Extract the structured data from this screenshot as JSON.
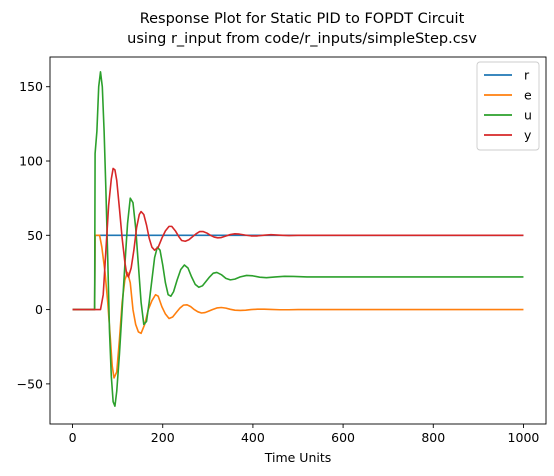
{
  "chart_data": {
    "type": "line",
    "title_line1": "Response Plot for Static PID to FOPDT Circuit",
    "title_line2": "using r_input from code/r_inputs/simpleStep.csv",
    "xlabel": "Time Units",
    "ylabel": "",
    "xlim": [
      -50,
      1050
    ],
    "ylim": [
      -77,
      170
    ],
    "grid": false,
    "legend_position": "top-right",
    "x_ticks": [
      0,
      200,
      400,
      600,
      800,
      1000
    ],
    "y_ticks": [
      -50,
      0,
      50,
      100,
      150
    ],
    "x_tick_labels": [
      "0",
      "200",
      "400",
      "600",
      "800",
      "1000"
    ],
    "y_tick_labels": [
      "−50",
      "0",
      "50",
      "100",
      "150"
    ],
    "series": [
      {
        "name": "r",
        "color": "#1f77b4",
        "points": [
          [
            0,
            0
          ],
          [
            49,
            0
          ],
          [
            50,
            50
          ],
          [
            100,
            50
          ],
          [
            200,
            50
          ],
          [
            400,
            50
          ],
          [
            600,
            50
          ],
          [
            800,
            50
          ],
          [
            1000,
            50
          ]
        ]
      },
      {
        "name": "e",
        "color": "#ff7f0e",
        "points": [
          [
            0,
            0
          ],
          [
            49,
            0
          ],
          [
            50,
            50
          ],
          [
            60,
            50
          ],
          [
            65,
            42
          ],
          [
            72,
            25
          ],
          [
            78,
            5
          ],
          [
            84,
            -20
          ],
          [
            88,
            -38
          ],
          [
            92,
            -46
          ],
          [
            98,
            -42
          ],
          [
            104,
            -20
          ],
          [
            110,
            5
          ],
          [
            116,
            20
          ],
          [
            122,
            25
          ],
          [
            128,
            18
          ],
          [
            134,
            0
          ],
          [
            140,
            -10
          ],
          [
            146,
            -15
          ],
          [
            152,
            -16
          ],
          [
            160,
            -10
          ],
          [
            168,
            0
          ],
          [
            176,
            6
          ],
          [
            184,
            10
          ],
          [
            190,
            9
          ],
          [
            198,
            2
          ],
          [
            206,
            -3
          ],
          [
            214,
            -6
          ],
          [
            222,
            -5
          ],
          [
            230,
            -2
          ],
          [
            238,
            1
          ],
          [
            246,
            3
          ],
          [
            254,
            3.2
          ],
          [
            262,
            2
          ],
          [
            270,
            0
          ],
          [
            278,
            -1.5
          ],
          [
            286,
            -2.3
          ],
          [
            294,
            -2
          ],
          [
            302,
            -1
          ],
          [
            310,
            0
          ],
          [
            320,
            1.1
          ],
          [
            330,
            1.4
          ],
          [
            340,
            1
          ],
          [
            350,
            0.2
          ],
          [
            360,
            -0.4
          ],
          [
            372,
            -0.6
          ],
          [
            384,
            -0.4
          ],
          [
            396,
            0
          ],
          [
            410,
            0.3
          ],
          [
            425,
            0.3
          ],
          [
            440,
            0.1
          ],
          [
            460,
            -0.1
          ],
          [
            480,
            -0.1
          ],
          [
            500,
            0
          ],
          [
            600,
            0
          ],
          [
            700,
            0
          ],
          [
            800,
            0
          ],
          [
            900,
            0
          ],
          [
            1000,
            0
          ]
        ]
      },
      {
        "name": "u",
        "color": "#2ca02c",
        "points": [
          [
            0,
            0
          ],
          [
            49,
            0
          ],
          [
            50,
            105
          ],
          [
            54,
            120
          ],
          [
            58,
            150
          ],
          [
            62,
            160
          ],
          [
            66,
            150
          ],
          [
            70,
            120
          ],
          [
            74,
            80
          ],
          [
            78,
            35
          ],
          [
            82,
            -15
          ],
          [
            86,
            -45
          ],
          [
            90,
            -62
          ],
          [
            94,
            -65
          ],
          [
            98,
            -55
          ],
          [
            104,
            -30
          ],
          [
            110,
            0
          ],
          [
            116,
            30
          ],
          [
            122,
            58
          ],
          [
            128,
            75
          ],
          [
            134,
            72
          ],
          [
            140,
            55
          ],
          [
            146,
            30
          ],
          [
            152,
            5
          ],
          [
            158,
            -10
          ],
          [
            164,
            -8
          ],
          [
            170,
            5
          ],
          [
            176,
            20
          ],
          [
            182,
            35
          ],
          [
            188,
            42
          ],
          [
            194,
            40
          ],
          [
            200,
            30
          ],
          [
            206,
            18
          ],
          [
            212,
            10
          ],
          [
            218,
            9
          ],
          [
            224,
            12
          ],
          [
            232,
            20
          ],
          [
            240,
            27
          ],
          [
            248,
            30
          ],
          [
            256,
            28
          ],
          [
            264,
            22
          ],
          [
            272,
            17
          ],
          [
            280,
            15
          ],
          [
            288,
            16
          ],
          [
            296,
            19
          ],
          [
            304,
            22
          ],
          [
            312,
            24.5
          ],
          [
            320,
            25
          ],
          [
            330,
            23.5
          ],
          [
            340,
            21
          ],
          [
            350,
            20
          ],
          [
            360,
            20.5
          ],
          [
            372,
            22
          ],
          [
            386,
            23
          ],
          [
            400,
            22.7
          ],
          [
            415,
            21.8
          ],
          [
            430,
            21.5
          ],
          [
            450,
            22
          ],
          [
            470,
            22.4
          ],
          [
            490,
            22.3
          ],
          [
            520,
            22
          ],
          [
            560,
            22
          ],
          [
            600,
            22
          ],
          [
            700,
            22
          ],
          [
            800,
            22
          ],
          [
            900,
            22
          ],
          [
            1000,
            22
          ]
        ]
      },
      {
        "name": "y",
        "color": "#d62728",
        "points": [
          [
            0,
            0
          ],
          [
            49,
            0
          ],
          [
            55,
            0
          ],
          [
            62,
            0
          ],
          [
            68,
            10
          ],
          [
            74,
            40
          ],
          [
            80,
            70
          ],
          [
            86,
            88
          ],
          [
            90,
            95
          ],
          [
            94,
            94
          ],
          [
            98,
            87
          ],
          [
            104,
            68
          ],
          [
            110,
            48
          ],
          [
            116,
            32
          ],
          [
            120,
            24
          ],
          [
            124,
            22
          ],
          [
            130,
            28
          ],
          [
            136,
            40
          ],
          [
            142,
            55
          ],
          [
            148,
            64
          ],
          [
            152,
            66
          ],
          [
            158,
            64
          ],
          [
            164,
            57
          ],
          [
            170,
            48
          ],
          [
            176,
            42
          ],
          [
            182,
            40
          ],
          [
            190,
            42
          ],
          [
            198,
            48
          ],
          [
            206,
            53
          ],
          [
            214,
            56
          ],
          [
            220,
            56
          ],
          [
            228,
            53
          ],
          [
            236,
            49
          ],
          [
            242,
            46.5
          ],
          [
            250,
            46
          ],
          [
            258,
            47
          ],
          [
            266,
            49
          ],
          [
            274,
            51
          ],
          [
            282,
            52.5
          ],
          [
            290,
            52.5
          ],
          [
            298,
            51.5
          ],
          [
            306,
            50
          ],
          [
            314,
            48.8
          ],
          [
            322,
            48.3
          ],
          [
            330,
            48.5
          ],
          [
            340,
            49.5
          ],
          [
            350,
            50.5
          ],
          [
            360,
            51
          ],
          [
            370,
            50.8
          ],
          [
            382,
            50.2
          ],
          [
            396,
            49.6
          ],
          [
            410,
            49.6
          ],
          [
            425,
            50.1
          ],
          [
            440,
            50.4
          ],
          [
            460,
            50.1
          ],
          [
            480,
            49.8
          ],
          [
            500,
            50
          ],
          [
            600,
            50
          ],
          [
            700,
            50
          ],
          [
            800,
            50
          ],
          [
            900,
            50
          ],
          [
            1000,
            50
          ]
        ]
      }
    ]
  }
}
